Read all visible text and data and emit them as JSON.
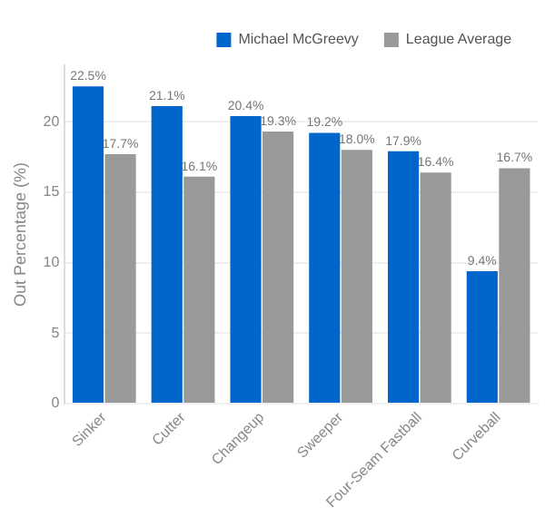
{
  "chart_data": {
    "type": "bar",
    "ylabel": "Out Percentage (%)",
    "categories": [
      "Sinker",
      "Cutter",
      "Changeup",
      "Sweeper",
      "Four-Seam Fastball",
      "Curveball"
    ],
    "series": [
      {
        "name": "Michael McGreevy",
        "color": "#0066cc",
        "values": [
          22.5,
          21.1,
          20.4,
          19.2,
          17.9,
          9.4
        ],
        "value_labels": [
          "22.5%",
          "21.1%",
          "20.4%",
          "19.2%",
          "17.9%",
          "9.4%"
        ]
      },
      {
        "name": "League Average",
        "color": "#999999",
        "values": [
          17.7,
          16.1,
          19.3,
          18.0,
          16.4,
          16.7
        ],
        "value_labels": [
          "17.7%",
          "16.1%",
          "19.3%",
          "18.0%",
          "16.4%",
          "16.7%"
        ]
      }
    ],
    "ylim": [
      0,
      24
    ],
    "yticks": [
      0,
      5,
      10,
      15,
      20
    ],
    "grid": "y",
    "legend": "top right"
  }
}
